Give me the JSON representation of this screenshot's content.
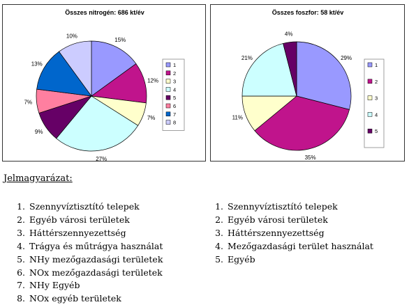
{
  "chart_data": [
    {
      "type": "pie",
      "title": "Összes nitrogén: 686 kt/év",
      "categories": [
        "1",
        "2",
        "3",
        "4",
        "5",
        "6",
        "7",
        "8"
      ],
      "values": [
        15,
        12,
        7,
        27,
        9,
        7,
        13,
        10
      ],
      "labels": [
        "15%",
        "12%",
        "7%",
        "27%",
        "9%",
        "7%",
        "13%",
        "10%"
      ],
      "colors": [
        "#9999ff",
        "#c0148c",
        "#ffffcc",
        "#ccffff",
        "#660066",
        "#ff7fa0",
        "#0066cc",
        "#ccccff"
      ],
      "legend": "right"
    },
    {
      "type": "pie",
      "title": "Összes foszfor: 58 kt/év",
      "categories": [
        "1",
        "2",
        "3",
        "4",
        "5"
      ],
      "values": [
        29,
        35,
        11,
        21,
        4
      ],
      "labels": [
        "29%",
        "35%",
        "11%",
        "21%",
        "4%"
      ],
      "colors": [
        "#9999ff",
        "#c0148c",
        "#ffffcc",
        "#ccffff",
        "#660066"
      ],
      "legend": "right"
    }
  ],
  "key": {
    "heading": "Jelmagyarázat:",
    "nitrogen": [
      {
        "num": "1.",
        "text": "Szennyvíztisztító telepek"
      },
      {
        "num": "2.",
        "text": "Egyéb városi területek"
      },
      {
        "num": "3.",
        "text": "Háttérszennyezettség"
      },
      {
        "num": "4.",
        "text": "Trágya és műtrágya használat"
      },
      {
        "num": "5.",
        "text": "NHy mezőgazdasági területek"
      },
      {
        "num": "6.",
        "text": "NOx mezőgazdasági területek"
      },
      {
        "num": "7.",
        "text": "NHy Egyéb"
      },
      {
        "num": "8.",
        "text": "NOx egyéb területek"
      }
    ],
    "phosphorus": [
      {
        "num": "1.",
        "text": "Szennyvíztisztító telepek"
      },
      {
        "num": "2.",
        "text": "Egyéb városi területek"
      },
      {
        "num": "3.",
        "text": "Háttérszennyezettség"
      },
      {
        "num": "4.",
        "text": "Mezőgazdasági terület használat"
      },
      {
        "num": "5.",
        "text": "Egyéb"
      }
    ]
  }
}
